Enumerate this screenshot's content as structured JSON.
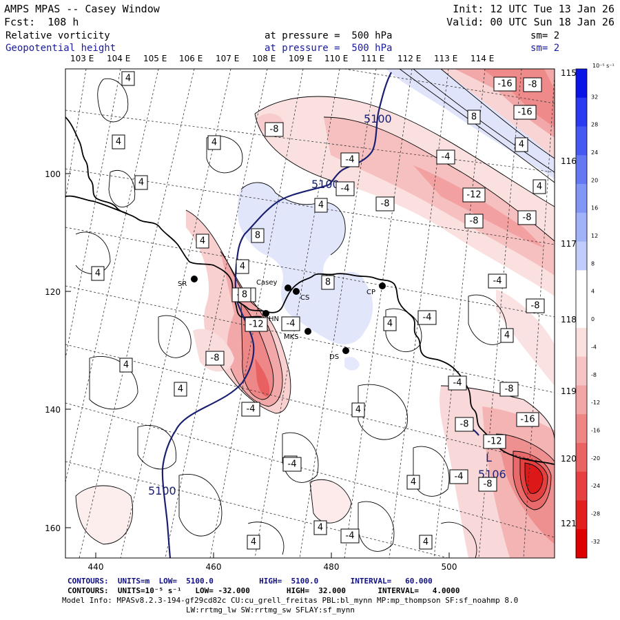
{
  "header": {
    "title": "AMPS MPAS -- Casey Window",
    "init": "Init: 12 UTC Tue 13 Jan 26",
    "fcst": "Fcst:  108 h",
    "valid": "Valid: 00 UTC Sun 18 Jan 26",
    "field1": {
      "name": "Relative vorticity",
      "level": "at pressure =  500 hPa",
      "smooth": "sm= 2"
    },
    "field2": {
      "name": "Geopotential height",
      "level": "at pressure =  500 hPa",
      "smooth": "sm= 2"
    }
  },
  "axes": {
    "top_lon": [
      "103 E",
      "104 E",
      "105 E",
      "106 E",
      "107 E",
      "108 E",
      "109 E",
      "110 E",
      "111 E",
      "112 E",
      "113 E",
      "114 E"
    ],
    "right_lon": [
      "115 E",
      "116 E",
      "117 E",
      "118 E",
      "119 E",
      "120 E",
      "121 E"
    ],
    "left_y": [
      "100",
      "120",
      "140",
      "160"
    ],
    "bottom_x": [
      "440",
      "460",
      "480",
      "500"
    ]
  },
  "stations": [
    {
      "label": "SR"
    },
    {
      "label": "Casey"
    },
    {
      "label": "CS"
    },
    {
      "label": "CP"
    },
    {
      "label": "HN"
    },
    {
      "label": "MKS"
    },
    {
      "label": "DS"
    }
  ],
  "height_labels": [
    "5100",
    "5100",
    "5100"
  ],
  "low_marker": {
    "symbol": "L",
    "value": "5106"
  },
  "contour_boxes": [
    "4",
    "4",
    "4",
    "4",
    "4",
    "4",
    "4",
    "4",
    "4",
    "4",
    "4",
    "4",
    "4",
    "4",
    "4",
    "4",
    "4",
    "4",
    "4",
    "4",
    "4",
    "4",
    "-8",
    "-4",
    "-8",
    "-8",
    "-8",
    "-8",
    "-12",
    "-16",
    "-16",
    "-8",
    "-8",
    "-4",
    "-4",
    "-4",
    "-4",
    "-4",
    "-4",
    "-4",
    "-4",
    "-12",
    "-8",
    "-8",
    "-8",
    "-16",
    "-12",
    "-8",
    "-4",
    "-4",
    "-4",
    "-8",
    "8",
    "8",
    "8",
    "8"
  ],
  "colorbar": {
    "unit": "10⁻⁵ s⁻¹",
    "labels": [
      "32",
      "28",
      "24",
      "20",
      "16",
      "12",
      "8",
      "4",
      "0",
      "-4",
      "-8",
      "-12",
      "-16",
      "-20",
      "-24",
      "-28",
      "-32"
    ],
    "colors": [
      "#0a14e6",
      "#2a3af0",
      "#4658f2",
      "#6478f4",
      "#8296f6",
      "#a0b2f8",
      "#c2ccfa",
      "#ffffff",
      "#ffffff",
      "#fbe0e0",
      "#f6c4c4",
      "#f2a6a6",
      "#ee8686",
      "#ea6464",
      "#e64040",
      "#e21e1e",
      "#de0000"
    ]
  },
  "footer": {
    "contours1": "CONTOURS:  UNITS=m  LOW=  5100.0          HIGH=  5100.0       INTERVAL=   60.000",
    "contours2": "CONTOURS:  UNITS=10⁻⁵ s⁻¹   LOW= -32.000        HIGH=  32.000       INTERVAL=   4.0000",
    "model_info": "Model Info: MPASv8.2.3-194-gf29cd82c CU:cu_grell_freitas PBL:bl_mynn MP:mp_thompson SF:sf_noahmp 8.0",
    "model_info2": "LW:rrtmg_lw SW:rrtmg_sw SFLAY:sf_mynn"
  }
}
